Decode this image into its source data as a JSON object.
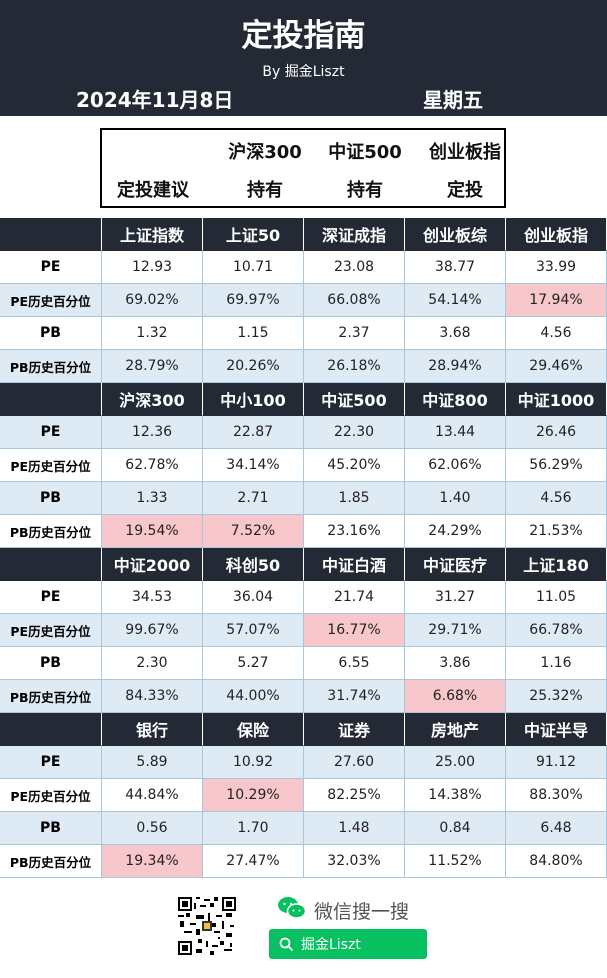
{
  "header": {
    "title": "定投指南",
    "byline": "By 掘金Liszt",
    "date": "2024年11月8日",
    "weekday": "星期五"
  },
  "advice": {
    "row_label": "定投建议",
    "items": [
      {
        "name": "沪深300",
        "action": "持有"
      },
      {
        "name": "中证500",
        "action": "持有"
      },
      {
        "name": "创业板指",
        "action": "定投"
      }
    ]
  },
  "colors": {
    "header_bg": "#232a35",
    "alt_row": "#deeaf4",
    "highlight": "#f8c7cc",
    "wechat_green": "#07c160"
  },
  "metric_labels": [
    "PE",
    "PE历史百分位",
    "PB",
    "PB历史百分位"
  ],
  "sections": [
    {
      "indices": [
        "上证指数",
        "上证50",
        "深证成指",
        "创业板综",
        "创业板指"
      ],
      "rows": [
        [
          "12.93",
          "10.71",
          "23.08",
          "38.77",
          "33.99"
        ],
        [
          "69.02%",
          "69.97%",
          "66.08%",
          "54.14%",
          "17.94%"
        ],
        [
          "1.32",
          "1.15",
          "2.37",
          "3.68",
          "4.56"
        ],
        [
          "28.79%",
          "20.26%",
          "26.18%",
          "28.94%",
          "29.46%"
        ]
      ],
      "highlight": [
        [
          1,
          4
        ]
      ]
    },
    {
      "indices": [
        "沪深300",
        "中小100",
        "中证500",
        "中证800",
        "中证1000"
      ],
      "rows": [
        [
          "12.36",
          "22.87",
          "22.30",
          "13.44",
          "26.46"
        ],
        [
          "62.78%",
          "34.14%",
          "45.20%",
          "62.06%",
          "56.29%"
        ],
        [
          "1.33",
          "2.71",
          "1.85",
          "1.40",
          "4.56"
        ],
        [
          "19.54%",
          "7.52%",
          "23.16%",
          "24.29%",
          "21.53%"
        ]
      ],
      "highlight": [
        [
          3,
          0
        ],
        [
          3,
          1
        ]
      ]
    },
    {
      "indices": [
        "中证2000",
        "科创50",
        "中证白酒",
        "中证医疗",
        "上证180"
      ],
      "rows": [
        [
          "34.53",
          "36.04",
          "21.74",
          "31.27",
          "11.05"
        ],
        [
          "99.67%",
          "57.07%",
          "16.77%",
          "29.71%",
          "66.78%"
        ],
        [
          "2.30",
          "5.27",
          "6.55",
          "3.86",
          "1.16"
        ],
        [
          "84.33%",
          "44.00%",
          "31.74%",
          "6.68%",
          "25.32%"
        ]
      ],
      "highlight": [
        [
          1,
          2
        ],
        [
          3,
          3
        ]
      ]
    },
    {
      "indices": [
        "银行",
        "保险",
        "证券",
        "房地产",
        "中证半导"
      ],
      "rows": [
        [
          "5.89",
          "10.92",
          "27.60",
          "25.00",
          "91.12"
        ],
        [
          "44.84%",
          "10.29%",
          "82.25%",
          "14.38%",
          "88.30%"
        ],
        [
          "0.56",
          "1.70",
          "1.48",
          "0.84",
          "6.48"
        ],
        [
          "19.34%",
          "27.47%",
          "32.03%",
          "11.52%",
          "84.80%"
        ]
      ],
      "highlight": [
        [
          1,
          1
        ],
        [
          3,
          0
        ]
      ]
    }
  ],
  "footer": {
    "wechat_label": "微信搜一搜",
    "search_text": "掘金Liszt"
  }
}
